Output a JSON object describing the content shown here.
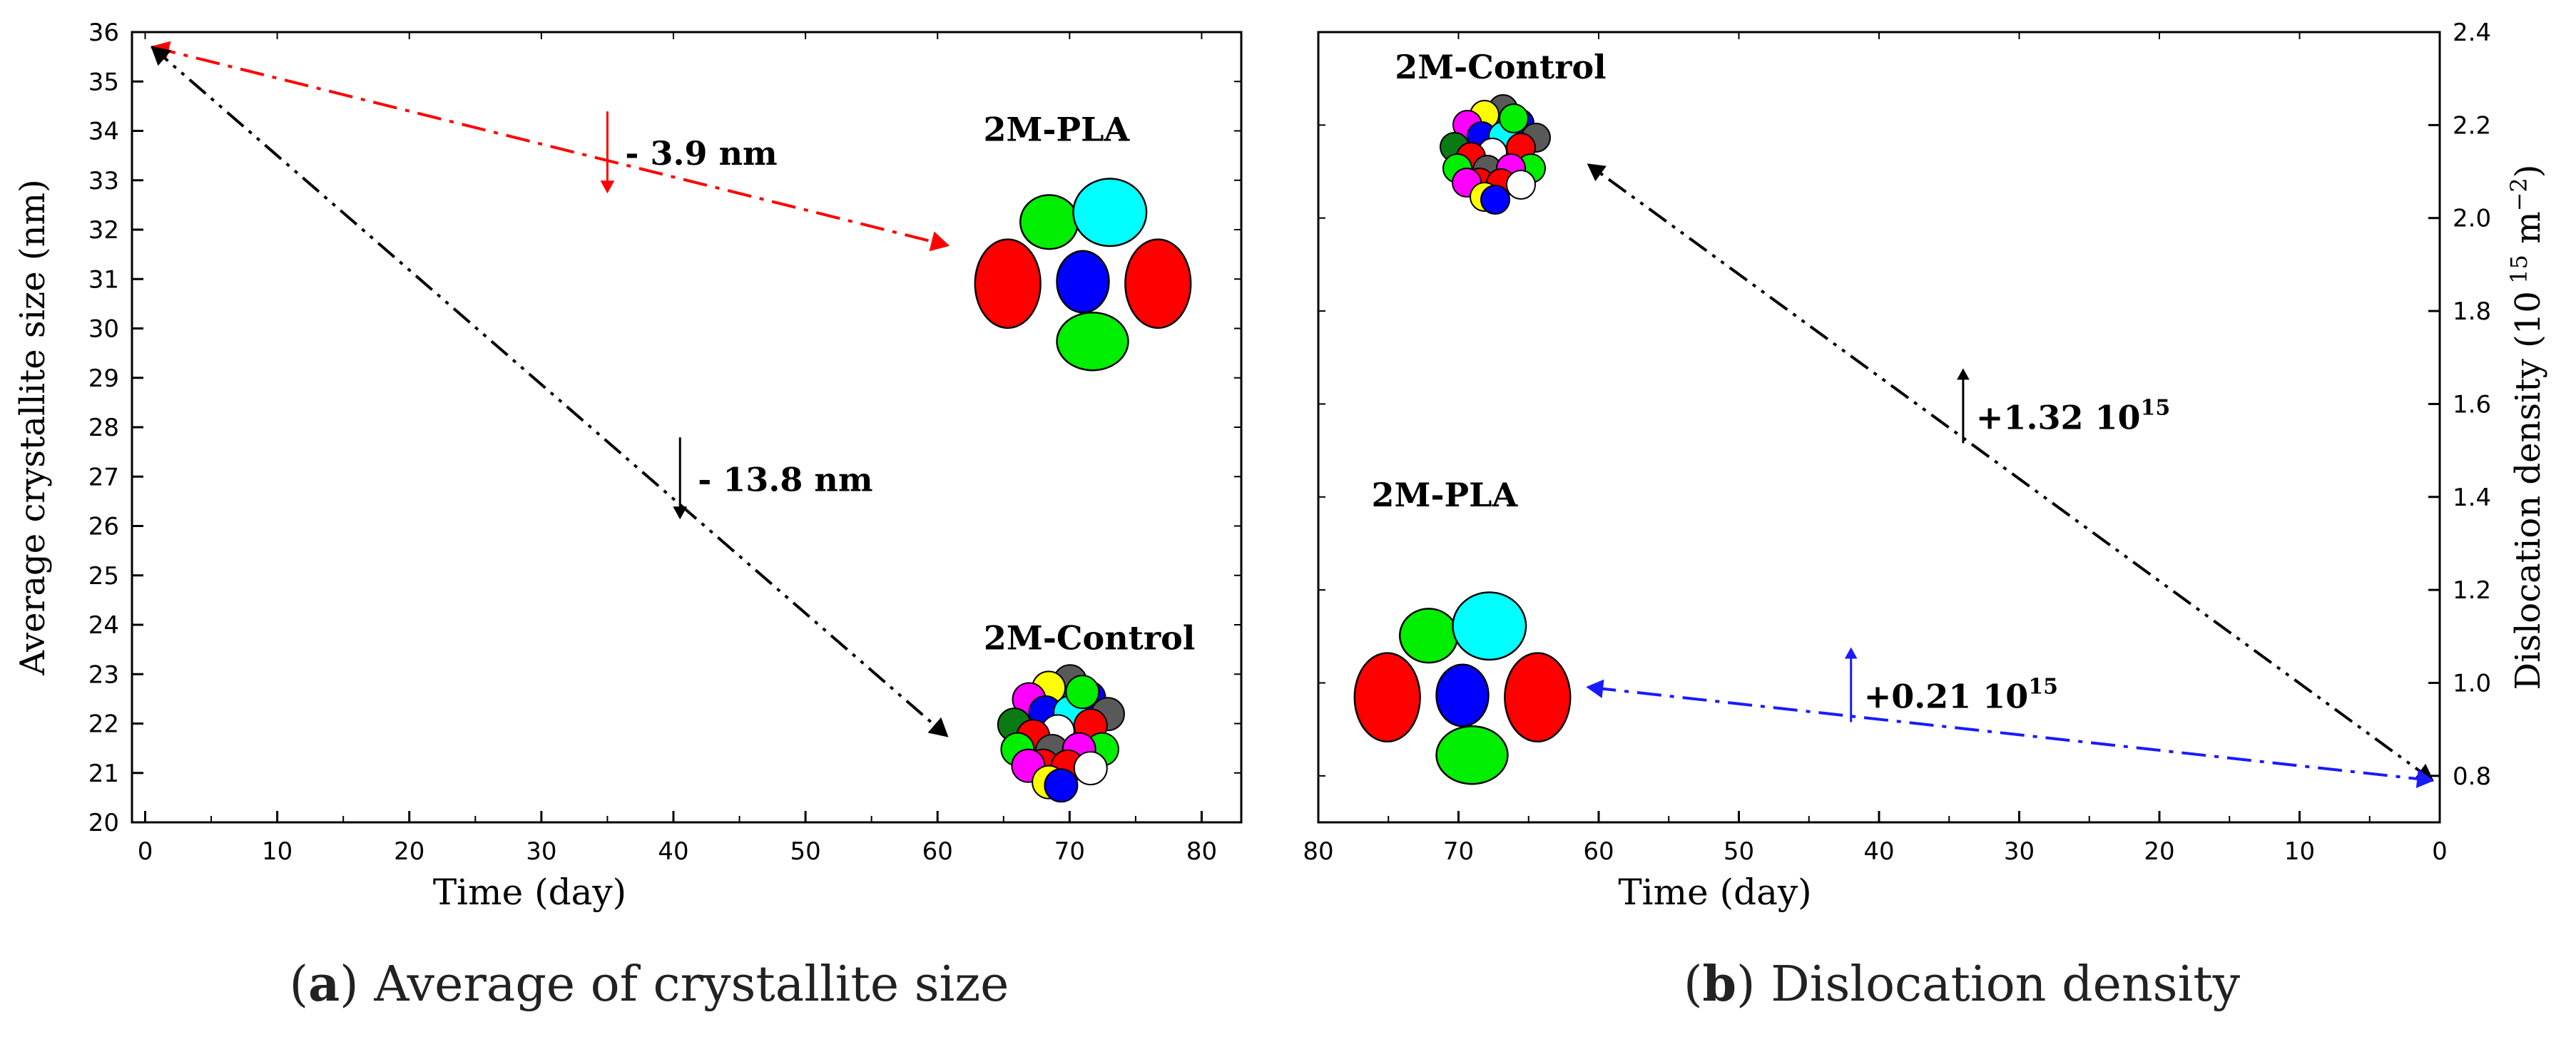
{
  "colors": {
    "red": "#ff0000",
    "green": "#00ee00",
    "blue": "#0000ff",
    "cyan": "#00ffff",
    "yellow": "#ffff00",
    "magenta": "#ff00ff",
    "gray": "#595959",
    "darkgreen": "#0a7a14",
    "white": "#ffffff",
    "black": "#000000",
    "blueArrow": "#1a1aff"
  },
  "chart_data": [
    {
      "type": "line",
      "title": "Average of crystallite size",
      "caption": {
        "label": "a",
        "text": "Average of crystallite size"
      },
      "xlabel": "Time (day)",
      "ylabel": "Average crystallite size (nm)",
      "xlim": [
        -1,
        83
      ],
      "ylim": [
        20,
        36
      ],
      "xticks": [
        0,
        10,
        20,
        30,
        40,
        50,
        60,
        70,
        80
      ],
      "yticks": [
        20,
        21,
        22,
        23,
        24,
        25,
        26,
        27,
        28,
        29,
        30,
        31,
        32,
        33,
        34,
        35,
        36
      ],
      "series": [
        {
          "name": "2M-PLA",
          "color": "#ff0000",
          "style": "dash-dot",
          "x": [
            0.5,
            60.5
          ],
          "y": [
            35.7,
            31.7
          ],
          "change_label": "- 3.9 nm",
          "change_at": {
            "x": 35,
            "y": 33.6
          },
          "direction": "down"
        },
        {
          "name": "2M-Control",
          "color": "#000000",
          "style": "dash-dot-dot",
          "x": [
            0.5,
            60.5
          ],
          "y": [
            35.7,
            21.8
          ],
          "change_label": "- 13.8 nm",
          "change_at": {
            "x": 40.5,
            "y": 27
          },
          "direction": "down"
        }
      ],
      "annotations": [
        {
          "text": "2M-PLA",
          "at": {
            "x": 69,
            "y": 33.8
          }
        },
        {
          "text": "2M-Control",
          "at": {
            "x": 71.5,
            "y": 23.5
          }
        }
      ]
    },
    {
      "type": "line",
      "title": "Dislocation density",
      "caption": {
        "label": "b",
        "text": "Dislocation density"
      },
      "xlabel": "Time (day)",
      "ylabel": "Dislocation density (10^15 m^-2)",
      "ylabel_parts": {
        "main": "Dislocation density (10",
        "sup1": "15",
        "mid": " m",
        "sup2": "−2",
        "end": ")"
      },
      "x_reversed": true,
      "xlim": [
        80,
        0
      ],
      "ylim": [
        0.7,
        2.4
      ],
      "xticks": [
        80,
        70,
        60,
        50,
        40,
        30,
        20,
        10,
        0
      ],
      "yticks": [
        0.8,
        1.0,
        1.2,
        1.4,
        1.6,
        1.8,
        2.0,
        2.2,
        2.4
      ],
      "yticks_major": [
        "0.8",
        "1.0",
        "1.2",
        "1.4",
        "1.6",
        "1.8",
        "2.0",
        "2.2",
        "2.4"
      ],
      "series": [
        {
          "name": "2M-Control",
          "color": "#000000",
          "style": "dash-dot-dot",
          "x": [
            0.5,
            60.5
          ],
          "y": [
            0.79,
            2.11
          ],
          "change_label": "+1.32 10",
          "change_sup": "15",
          "change_at": {
            "x": 34,
            "y": 1.6
          },
          "direction": "up"
        },
        {
          "name": "2M-PLA",
          "color": "#1a1aff",
          "style": "dash-dot",
          "x": [
            0.5,
            60.5
          ],
          "y": [
            0.79,
            0.99
          ],
          "change_label": "+0.21 10",
          "change_sup": "15",
          "change_at": {
            "x": 42,
            "y": 1.0
          },
          "direction": "up"
        }
      ],
      "annotations": [
        {
          "text": "2M-Control",
          "at": {
            "x": 67,
            "y": 2.3
          }
        },
        {
          "text": "2M-PLA",
          "at": {
            "x": 71,
            "y": 1.38
          }
        }
      ]
    }
  ]
}
